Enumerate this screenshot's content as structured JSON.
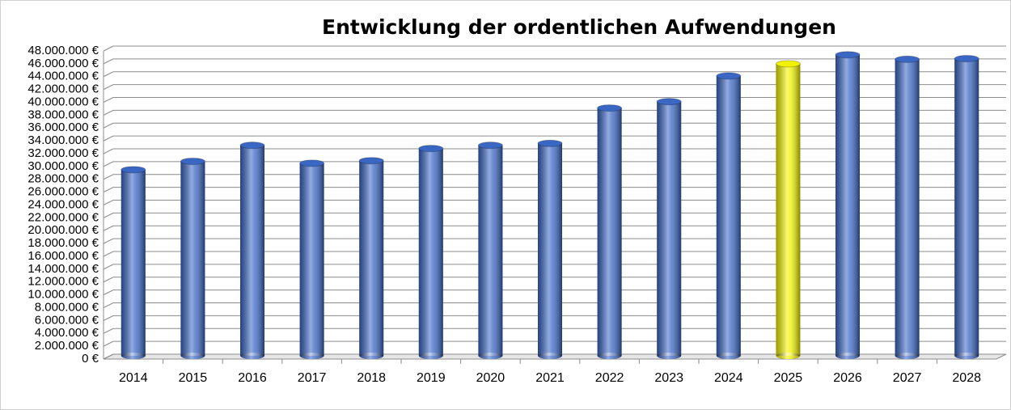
{
  "chart_data": {
    "type": "bar",
    "title": "Entwicklung der ordentlichen Aufwendungen",
    "categories": [
      "2014",
      "2015",
      "2016",
      "2017",
      "2018",
      "2019",
      "2020",
      "2021",
      "2022",
      "2023",
      "2024",
      "2025",
      "2026",
      "2027",
      "2028"
    ],
    "values": [
      29000000,
      30300000,
      32800000,
      30000000,
      30400000,
      32300000,
      32800000,
      33100000,
      38600000,
      39600000,
      43600000,
      45500000,
      46900000,
      46200000,
      46300000
    ],
    "colors": [
      "#3b67c4",
      "#3b67c4",
      "#3b67c4",
      "#3b67c4",
      "#3b67c4",
      "#3b67c4",
      "#3b67c4",
      "#3b67c4",
      "#3b67c4",
      "#3b67c4",
      "#3b67c4",
      "#f2f200",
      "#3b67c4",
      "#3b67c4",
      "#3b67c4"
    ],
    "ylim": [
      0,
      48000000
    ],
    "yticks": [
      {
        "value": 0,
        "label": "0 €"
      },
      {
        "value": 2000000,
        "label": "2.000.000 €"
      },
      {
        "value": 4000000,
        "label": "4.000.000 €"
      },
      {
        "value": 6000000,
        "label": "6.000.000 €"
      },
      {
        "value": 8000000,
        "label": "8.000.000 €"
      },
      {
        "value": 10000000,
        "label": "10.000.000 €"
      },
      {
        "value": 12000000,
        "label": "12.000.000 €"
      },
      {
        "value": 14000000,
        "label": "14.000.000 €"
      },
      {
        "value": 16000000,
        "label": "16.000.000 €"
      },
      {
        "value": 18000000,
        "label": "18.000.000 €"
      },
      {
        "value": 20000000,
        "label": "20.000.000 €"
      },
      {
        "value": 22000000,
        "label": "22.000.000 €"
      },
      {
        "value": 24000000,
        "label": "24.000.000 €"
      },
      {
        "value": 26000000,
        "label": "26.000.000 €"
      },
      {
        "value": 28000000,
        "label": "28.000.000 €"
      },
      {
        "value": 30000000,
        "label": "30.000.000 €"
      },
      {
        "value": 32000000,
        "label": "32.000.000 €"
      },
      {
        "value": 34000000,
        "label": "34.000.000 €"
      },
      {
        "value": 36000000,
        "label": "36.000.000 €"
      },
      {
        "value": 38000000,
        "label": "38.000.000 €"
      },
      {
        "value": 40000000,
        "label": "40.000.000 €"
      },
      {
        "value": 42000000,
        "label": "42.000.000 €"
      },
      {
        "value": 44000000,
        "label": "44.000.000 €"
      },
      {
        "value": 46000000,
        "label": "46.000.000 €"
      },
      {
        "value": 48000000,
        "label": "48.000.000 €"
      }
    ],
    "grid": true
  }
}
